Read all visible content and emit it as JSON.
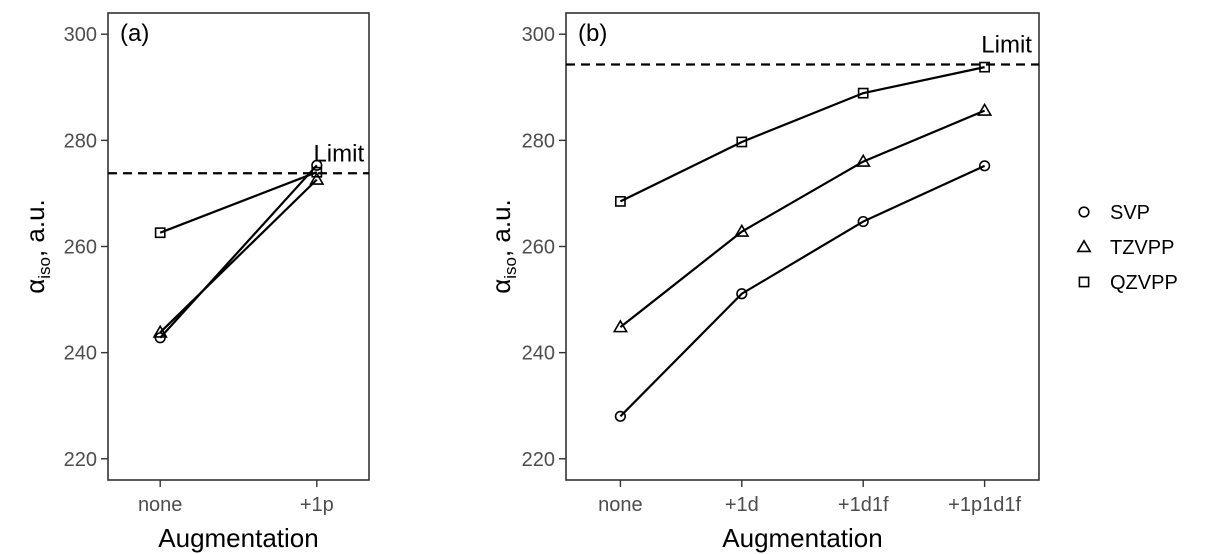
{
  "chart_data": [
    {
      "type": "line",
      "panel_label": "(a)",
      "categories": [
        "none",
        "+1p"
      ],
      "xlabel": "Augmentation",
      "ylabel_main": "α",
      "ylabel_sub": "iso",
      "ylabel_unit": ", a.u.",
      "ylim": [
        216,
        304
      ],
      "yticks": [
        220,
        240,
        260,
        280,
        300
      ],
      "limit": {
        "label": "Limit",
        "value": 273.8
      },
      "series": [
        {
          "name": "SVP",
          "marker": "circle",
          "values": [
            242.8,
            275.3
          ]
        },
        {
          "name": "TZVPP",
          "marker": "triangle",
          "values": [
            243.8,
            272.6
          ]
        },
        {
          "name": "QZVPP",
          "marker": "square",
          "values": [
            262.6,
            274.0
          ]
        }
      ],
      "grid": false
    },
    {
      "type": "line",
      "panel_label": "(b)",
      "categories": [
        "none",
        "+1d",
        "+1d1f",
        "+1p1d1f"
      ],
      "xlabel": "Augmentation",
      "ylabel_main": "α",
      "ylabel_sub": "iso",
      "ylabel_unit": ", a.u.",
      "ylim": [
        216,
        304
      ],
      "yticks": [
        220,
        240,
        260,
        280,
        300
      ],
      "limit": {
        "label": "Limit",
        "value": 294.3
      },
      "series": [
        {
          "name": "SVP",
          "marker": "circle",
          "values": [
            228.0,
            251.1,
            264.7,
            275.2
          ]
        },
        {
          "name": "TZVPP",
          "marker": "triangle",
          "values": [
            244.8,
            262.8,
            276.0,
            285.6
          ]
        },
        {
          "name": "QZVPP",
          "marker": "square",
          "values": [
            268.5,
            279.7,
            288.9,
            293.8
          ]
        }
      ],
      "grid": false
    }
  ],
  "legend": {
    "position": "right",
    "entries": [
      {
        "label": "SVP",
        "marker": "circle"
      },
      {
        "label": "TZVPP",
        "marker": "triangle"
      },
      {
        "label": "QZVPP",
        "marker": "square"
      }
    ]
  }
}
